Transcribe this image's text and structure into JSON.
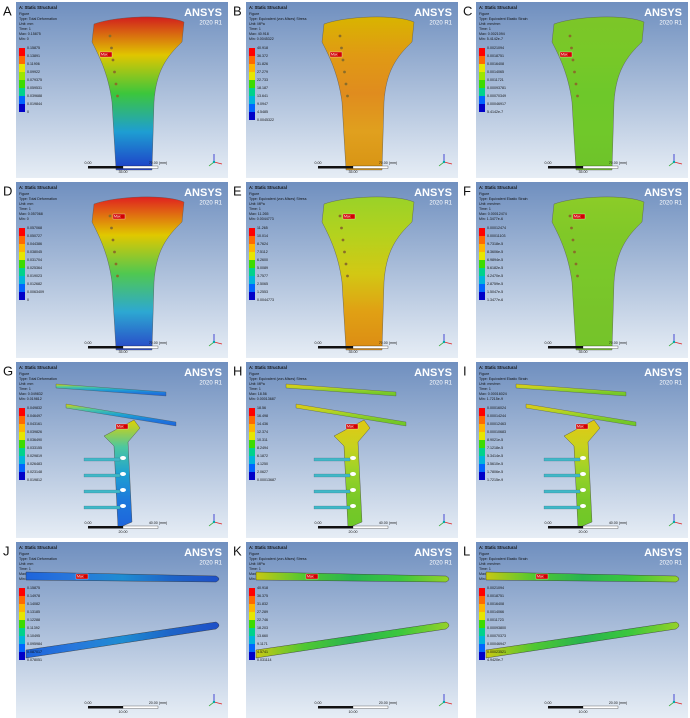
{
  "header": "A: Static Structural",
  "brand": "ANSYS",
  "version": "2020 R1",
  "figure": "Figure",
  "time": "Time: 1",
  "max_tag": "Max",
  "panels": [
    {
      "letter": "A",
      "type": "Type: Total Deformation",
      "unit": "Unit: mm",
      "max": "Max: 0.15875",
      "min": "Min: 0",
      "legend": [
        "0.15875",
        "0.13891",
        "0.11906",
        "0.09922",
        "0.079375",
        "0.059531",
        "0.039688",
        "0.019844",
        "0"
      ],
      "scale": [
        "0.00",
        "70.00 (mm)",
        "35.00"
      ]
    },
    {
      "letter": "B",
      "type": "Type: Equivalent (von-Mises) Stress",
      "unit": "Unit: MPa",
      "max": "Max: 40.918",
      "min": "Min: 0.0045322",
      "legend": [
        "40.918",
        "36.372",
        "31.826",
        "27.279",
        "22.733",
        "18.187",
        "13.641",
        "9.0947",
        "4.5485",
        "0.0045322"
      ],
      "scale": [
        "0.00",
        "70.00 (mm)",
        "35.00"
      ]
    },
    {
      "letter": "C",
      "type": "Type: Equivalent Elastic Strain",
      "unit": "Unit: mm/mm",
      "max": "Max: 0.0021094",
      "min": "Min: 5.4142e-7",
      "legend": [
        "0.0021094",
        "0.0018751",
        "0.0016408",
        "0.0014065",
        "0.0011721",
        "0.00093781",
        "0.00070349",
        "0.00046917",
        "5.4142e-7"
      ],
      "scale": [
        "0.00",
        "70.00 (mm)",
        "35.00"
      ]
    },
    {
      "letter": "D",
      "type": "Type: Total Deformation",
      "unit": "Unit: mm",
      "max": "Max: 0.057068",
      "min": "Min: 0",
      "legend": [
        "0.057068",
        "0.050727",
        "0.044386",
        "0.038045",
        "0.031704",
        "0.025364",
        "0.019023",
        "0.012682",
        "0.0063409",
        "0"
      ],
      "scale": [
        "0.00",
        "70.00 (mm)",
        "35.00"
      ]
    },
    {
      "letter": "E",
      "type": "Type: Equivalent (von-Mises) Stress",
      "unit": "Unit: MPa",
      "max": "Max: 11.265",
      "min": "Min: 0.0044773",
      "legend": [
        "11.265",
        "10.014",
        "8.7624",
        "7.5112",
        "6.2600",
        "5.0089",
        "3.7577",
        "2.5065",
        "1.2553",
        "0.0044773"
      ],
      "scale": [
        "0.00",
        "70.00 (mm)",
        "35.00"
      ]
    },
    {
      "letter": "F",
      "type": "Type: Equivalent Elastic Strain",
      "unit": "Unit: mm/mm",
      "max": "Max: 0.00012474",
      "min": "Min: 1.3477e-6",
      "legend": [
        "0.00012474",
        "0.00011103",
        "9.7318e-5",
        "8.3606e-5",
        "6.9894e-5",
        "5.6182e-5",
        "4.2470e-5",
        "2.8759e-5",
        "1.5047e-5",
        "1.3477e-6"
      ],
      "scale": [
        "0.00",
        "70.00 (mm)",
        "35.00"
      ]
    },
    {
      "letter": "G",
      "type": "Type: Total Deformation",
      "unit": "Unit: mm",
      "max": "Max: 0.049832",
      "min": "Min: 0.019812",
      "legend": [
        "0.049832",
        "0.046497",
        "0.043161",
        "0.039826",
        "0.036490",
        "0.033155",
        "0.029819",
        "0.026483",
        "0.023148",
        "0.019812"
      ],
      "scale": [
        "0.00",
        "40.00 (mm)",
        "20.00"
      ]
    },
    {
      "letter": "H",
      "type": "Type: Equivalent (von-Mises) Stress",
      "unit": "Unit: MPa",
      "max": "Max: 18.56",
      "min": "Min: 0.00013687",
      "legend": [
        "18.56",
        "16.498",
        "14.436",
        "12.374",
        "10.311",
        "8.2494",
        "6.1872",
        "4.1250",
        "2.0627",
        "0.00013687"
      ],
      "scale": [
        "0.00",
        "40.00 (mm)",
        "20.00"
      ]
    },
    {
      "letter": "I",
      "type": "Type: Equivalent Elastic Strain",
      "unit": "Unit: mm/mm",
      "max": "Max: 0.00016024",
      "min": "Min: 1.7215e-9",
      "legend": [
        "0.00016024",
        "0.00014244",
        "0.00012463",
        "0.00010683",
        "8.9021e-5",
        "7.1218e-5",
        "5.3414e-5",
        "3.5610e-5",
        "1.7806e-5",
        "1.7215e-9"
      ],
      "scale": [
        "0.00",
        "40.00 (mm)",
        "20.00"
      ]
    },
    {
      "letter": "J",
      "type": "Type: Total Deformation",
      "unit": "Unit: mm",
      "max": "Max: 0.15875",
      "min": "Min: 0.078051",
      "legend": [
        "0.15875",
        "0.14978",
        "0.14082",
        "0.13185",
        "0.12288",
        "0.11392",
        "0.10495",
        "0.095984",
        "0.087017",
        "0.078051"
      ],
      "scale": [
        "0.00",
        "20.00 (mm)",
        "10.00"
      ]
    },
    {
      "letter": "K",
      "type": "Type: Equivalent (von-Mises) Stress",
      "unit": "Unit: MPa",
      "max": "Max: 40.918",
      "min": "Min: 0.031114",
      "legend": [
        "40.918",
        "36.375",
        "31.832",
        "27.289",
        "22.746",
        "18.203",
        "13.660",
        "9.1171",
        "4.5741",
        "0.031114"
      ],
      "scale": [
        "0.00",
        "20.00 (mm)",
        "10.00"
      ]
    },
    {
      "letter": "L",
      "type": "Type: Equivalent Elastic Strain",
      "unit": "Unit: mm/mm",
      "max": "Max: 0.0021094",
      "min": "Min: 4.9420e-7",
      "legend": [
        "0.0021094",
        "0.0018751",
        "0.0016408",
        "0.0014066",
        "0.0011723",
        "0.00093800",
        "0.00070373",
        "0.00046947",
        "0.00023521",
        "4.9420e-7"
      ],
      "scale": [
        "0.00",
        "20.00 (mm)",
        "10.00"
      ]
    }
  ]
}
